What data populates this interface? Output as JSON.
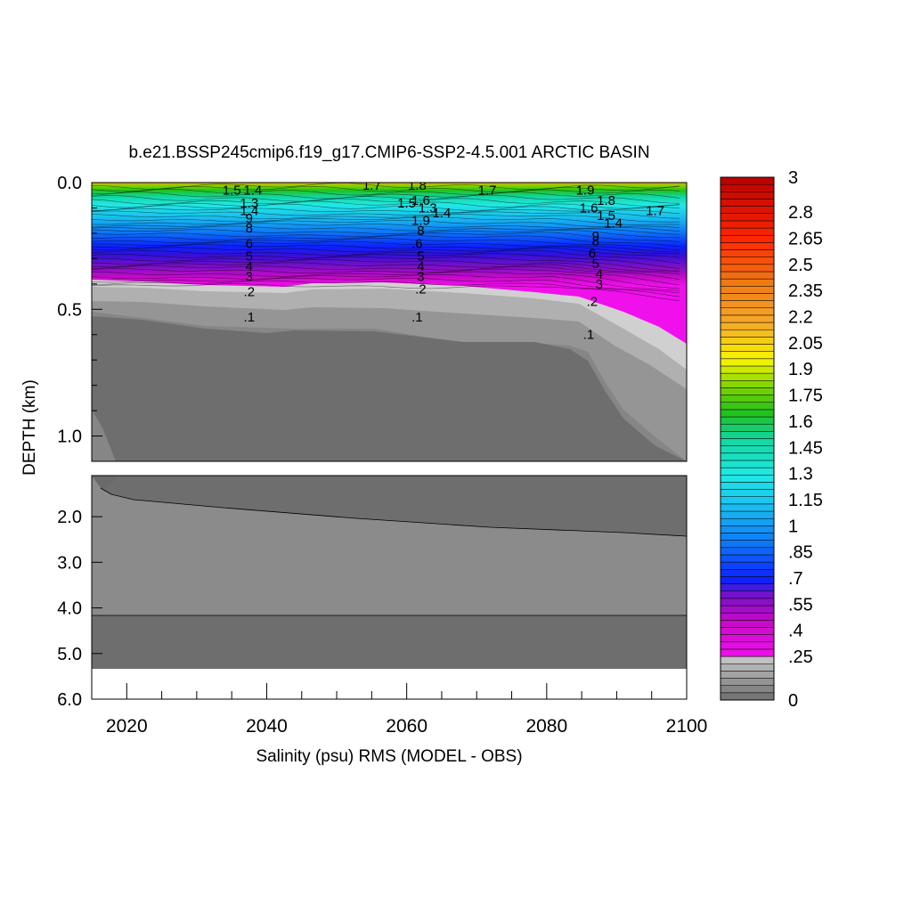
{
  "chart_data": {
    "type": "heatmap",
    "title": "b.e21.BSSP245cmip6.f19_g17.CMIP6-SSP2-4.5.001 ARCTIC BASIN",
    "xlabel": "Salinity (psu) RMS (MODEL - OBS)",
    "ylabel": "DEPTH (km)",
    "xlim": [
      2015,
      2100
    ],
    "x_ticks": [
      "2020",
      "2040",
      "2060",
      "2080",
      "2100"
    ],
    "upper_panel": {
      "ylim": [
        0.0,
        1.1
      ],
      "y_ticks": [
        "0.0",
        "0.5",
        "1.0"
      ]
    },
    "lower_panel": {
      "ylim": [
        1.1,
        6.0
      ],
      "y_ticks": [
        "2.0",
        "3.0",
        "4.0",
        "5.0",
        "6.0"
      ]
    },
    "colorbar": {
      "min": 0,
      "max": 3,
      "labels": [
        "3",
        "2.8",
        "2.65",
        "2.5",
        "2.35",
        "2.2",
        "2.05",
        "1.9",
        "1.75",
        "1.6",
        "1.45",
        "1.3",
        "1.15",
        "1",
        ".85",
        ".7",
        ".55",
        ".4",
        ".25",
        "0"
      ],
      "palette": "white-gray below 0.25, then magenta-blue-cyan-green-yellow-orange-red up to 3"
    },
    "contour_labels": [
      {
        "x": 2035,
        "depth": 0.03,
        "text": "1.5"
      },
      {
        "x": 2038,
        "depth": 0.03,
        "text": "1.4"
      },
      {
        "x": 2037.5,
        "depth": 0.08,
        "text": "1.3"
      },
      {
        "x": 2037.5,
        "depth": 0.11,
        "text": "1.4"
      },
      {
        "x": 2037.5,
        "depth": 0.14,
        "text": "9"
      },
      {
        "x": 2037.5,
        "depth": 0.18,
        "text": "8"
      },
      {
        "x": 2037.5,
        "depth": 0.24,
        "text": "6"
      },
      {
        "x": 2037.5,
        "depth": 0.29,
        "text": "5"
      },
      {
        "x": 2037.5,
        "depth": 0.33,
        "text": "4"
      },
      {
        "x": 2037.5,
        "depth": 0.37,
        "text": "3"
      },
      {
        "x": 2037.5,
        "depth": 0.43,
        "text": ".2"
      },
      {
        "x": 2037.5,
        "depth": 0.53,
        "text": ".1"
      },
      {
        "x": 2055,
        "depth": 0.01,
        "text": "1.7"
      },
      {
        "x": 2061.5,
        "depth": 0.01,
        "text": "1.8"
      },
      {
        "x": 2060,
        "depth": 0.08,
        "text": "1.5"
      },
      {
        "x": 2062,
        "depth": 0.07,
        "text": "1.6"
      },
      {
        "x": 2063,
        "depth": 0.1,
        "text": "1.3"
      },
      {
        "x": 2065,
        "depth": 0.12,
        "text": "1.4"
      },
      {
        "x": 2062,
        "depth": 0.15,
        "text": "1.9"
      },
      {
        "x": 2062,
        "depth": 0.19,
        "text": "8"
      },
      {
        "x": 2061.5,
        "depth": 0.24,
        "text": ".6"
      },
      {
        "x": 2062,
        "depth": 0.29,
        "text": "5"
      },
      {
        "x": 2062,
        "depth": 0.33,
        "text": "4"
      },
      {
        "x": 2062,
        "depth": 0.37,
        "text": "3"
      },
      {
        "x": 2062,
        "depth": 0.42,
        "text": ".2"
      },
      {
        "x": 2061.5,
        "depth": 0.53,
        "text": ".1"
      },
      {
        "x": 2071.5,
        "depth": 0.03,
        "text": "1.7"
      },
      {
        "x": 2085.5,
        "depth": 0.03,
        "text": "1.9"
      },
      {
        "x": 2088.5,
        "depth": 0.07,
        "text": "1.8"
      },
      {
        "x": 2086,
        "depth": 0.1,
        "text": "1.6"
      },
      {
        "x": 2088.5,
        "depth": 0.13,
        "text": "1.5"
      },
      {
        "x": 2089.5,
        "depth": 0.16,
        "text": "1.4"
      },
      {
        "x": 2095.5,
        "depth": 0.11,
        "text": "1.7"
      },
      {
        "x": 2087,
        "depth": 0.21,
        "text": "9"
      },
      {
        "x": 2087,
        "depth": 0.23,
        "text": "8"
      },
      {
        "x": 2086.5,
        "depth": 0.28,
        "text": "6"
      },
      {
        "x": 2087,
        "depth": 0.32,
        "text": "5"
      },
      {
        "x": 2087.5,
        "depth": 0.36,
        "text": "4"
      },
      {
        "x": 2087.5,
        "depth": 0.4,
        "text": "3"
      },
      {
        "x": 2086.5,
        "depth": 0.47,
        "text": ".2"
      },
      {
        "x": 2086,
        "depth": 0.6,
        "text": ".1"
      }
    ]
  }
}
